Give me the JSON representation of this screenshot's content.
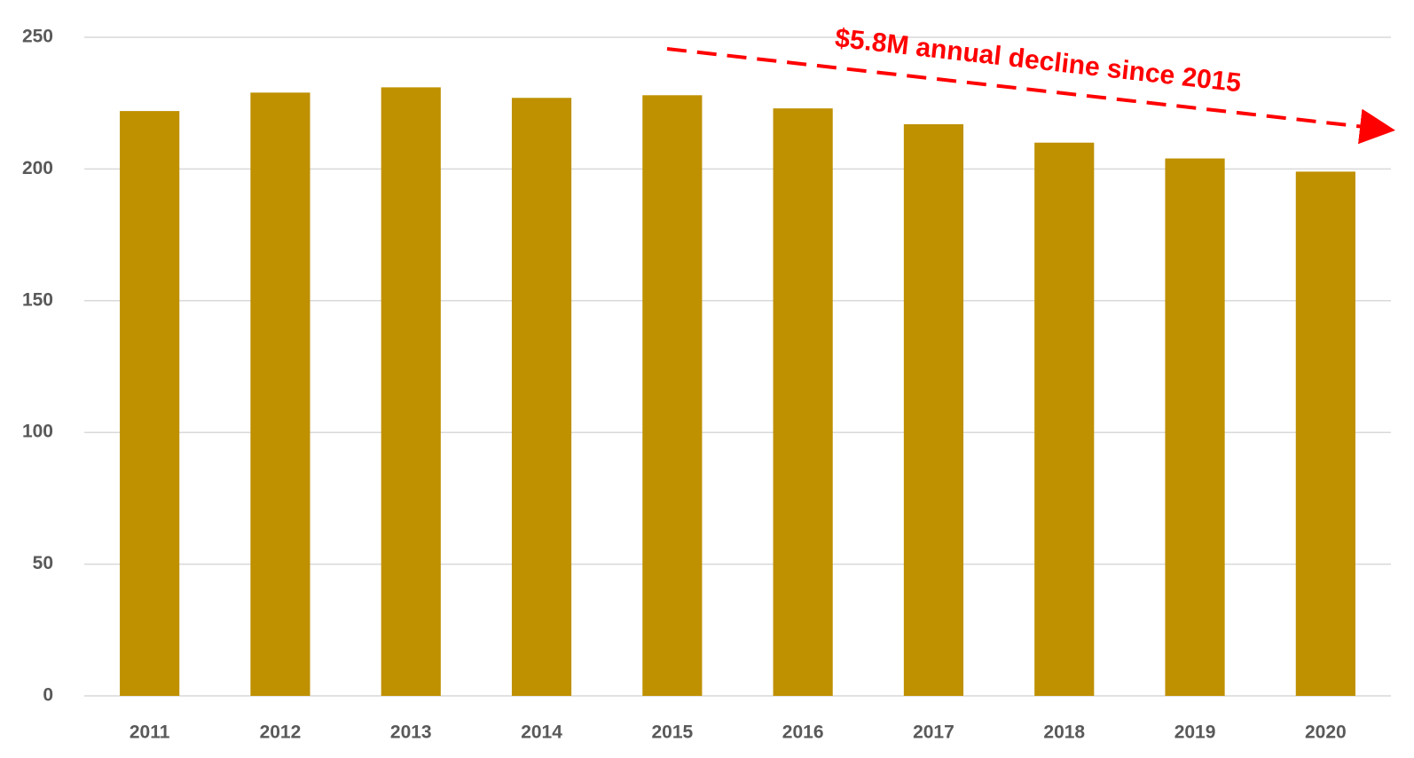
{
  "chart_data": {
    "type": "bar",
    "categories": [
      "2011",
      "2012",
      "2013",
      "2014",
      "2015",
      "2016",
      "2017",
      "2018",
      "2019",
      "2020"
    ],
    "values": [
      222,
      229,
      231,
      227,
      228,
      223,
      217,
      210,
      204,
      199
    ],
    "color": "#bf9000",
    "ylim": [
      0,
      250
    ],
    "yticks": [
      0,
      50,
      100,
      150,
      200,
      250
    ],
    "grid": true,
    "annotation": "$5.8M annual decline since 2015"
  }
}
